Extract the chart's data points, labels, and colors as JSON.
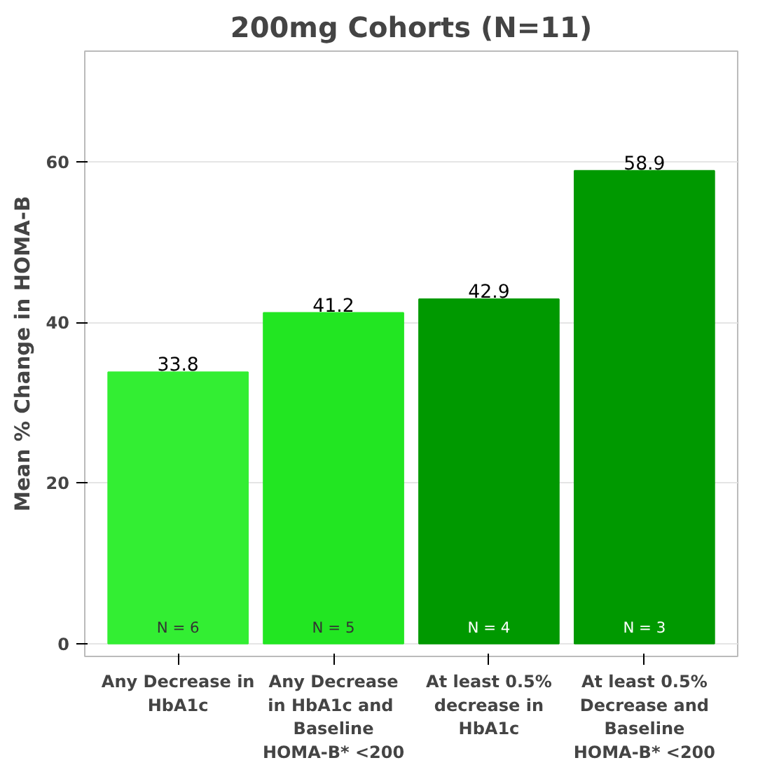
{
  "chart_data": {
    "type": "bar",
    "title": "200mg Cohorts (N=11)",
    "ylabel": "Mean % Change in HOMA-B",
    "categories": [
      "Any Decrease in\nHbA1c",
      "Any Decrease\nin HbA1c  and\nBaseline\nHOMA-B* <200",
      "At least 0.5%\ndecrease in\nHbA1c",
      "At least 0.5%\nDecrease and\nBaseline\nHOMA-B* <200"
    ],
    "values": [
      33.8,
      41.2,
      42.9,
      58.9
    ],
    "colors": [
      "#33ee33",
      "#22e622",
      "#009900",
      "#009900"
    ],
    "data_labels": true,
    "annotations": [
      "N = 6",
      "N = 5",
      "N = 4",
      "N = 3"
    ],
    "ylim": [
      -1.6,
      73.8
    ],
    "yticks": [
      0,
      20,
      40,
      60
    ],
    "grid": "y"
  }
}
